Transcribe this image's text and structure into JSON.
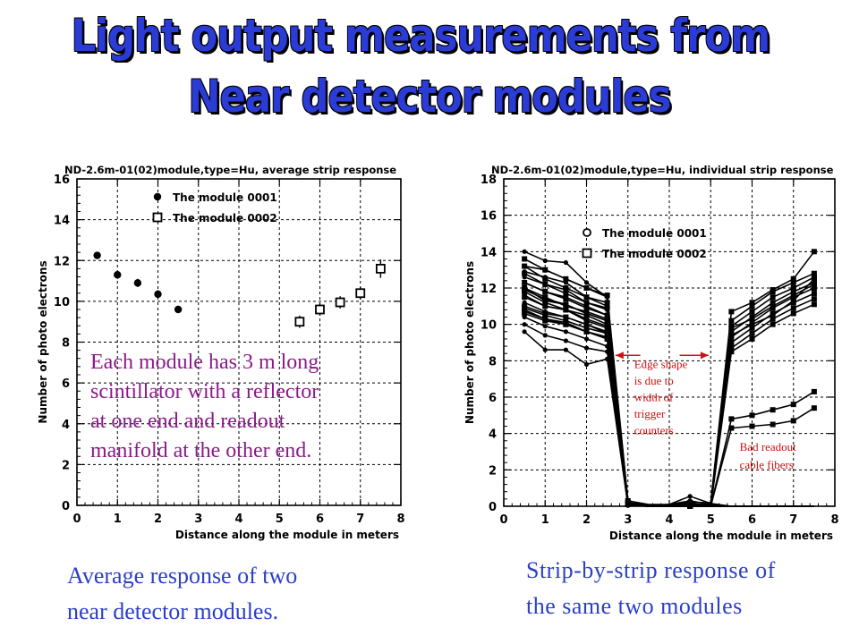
{
  "title": {
    "line1": "Light output measurements from",
    "line2": "Near detector modules"
  },
  "colors": {
    "title": "#2a3bd6",
    "caption": "#2b3fc8",
    "overlay": "#8a1a8a",
    "note": "#d01010",
    "grid": "#000000"
  },
  "captions": {
    "left_line1": "Average response of two",
    "left_line2": "near detector modules.",
    "right_line1": "Strip-by-strip response of",
    "right_line2": "the same two modules"
  },
  "left_overlay": {
    "lines": [
      "Each module has 3 m long",
      "scintillator with a reflector",
      "at one end and readout",
      "manifold at the other end."
    ]
  },
  "right_notes": {
    "edge": [
      "Edge shape",
      "is due to",
      "width of",
      "trigger",
      "counters"
    ],
    "bad": [
      "Bad readout",
      "cable fibers"
    ]
  },
  "chart_data": [
    {
      "type": "scatter",
      "title": "ND-2.6m-01(02)module,type=Hu, average strip response",
      "xlabel": "Distance along the module in meters",
      "ylabel": "Number of photo electrons",
      "xlim": [
        0,
        8
      ],
      "ylim": [
        0,
        16
      ],
      "xticks": [
        "0",
        "1",
        "2",
        "3",
        "4",
        "5",
        "6",
        "7",
        "8"
      ],
      "yticks": [
        "0",
        "2",
        "4",
        "6",
        "8",
        "10",
        "12",
        "14",
        "16"
      ],
      "grid": true,
      "legend_position": "top-left",
      "series": [
        {
          "name": "The module 0001",
          "marker": "filled-circle",
          "x": [
            0.5,
            1.0,
            1.5,
            2.0,
            2.5
          ],
          "y": [
            12.25,
            11.3,
            10.9,
            10.35,
            9.6
          ],
          "err": [
            0.15,
            0.2,
            0.2,
            0.2,
            0.15
          ]
        },
        {
          "name": "The module 0002",
          "marker": "open-square",
          "x": [
            5.5,
            6.0,
            6.5,
            7.0,
            7.5
          ],
          "y": [
            9.0,
            9.6,
            9.95,
            10.4,
            11.6
          ],
          "err": [
            0.3,
            0.3,
            0.3,
            0.3,
            0.45
          ]
        }
      ]
    },
    {
      "type": "line",
      "title": "ND-2.6m-01(02)module,type=Hu, individual strip response",
      "xlabel": "Distance along the module in meters",
      "ylabel": "Number of photo electrons",
      "xlim": [
        0,
        8
      ],
      "ylim": [
        0,
        18
      ],
      "xticks": [
        "0",
        "1",
        "2",
        "3",
        "4",
        "5",
        "6",
        "7",
        "8"
      ],
      "yticks": [
        "0",
        "2",
        "4",
        "6",
        "8",
        "10",
        "12",
        "14",
        "16",
        "18"
      ],
      "grid": true,
      "legend_position": "top-center",
      "legend": [
        {
          "name": "The module 0001",
          "marker": "open-circle"
        },
        {
          "name": "The module 0002",
          "marker": "open-square"
        }
      ],
      "x": [
        0.5,
        1.0,
        1.5,
        2.0,
        2.5,
        3.0,
        3.5,
        4.0,
        4.5,
        5.0,
        5.5,
        6.0,
        6.5,
        7.0,
        7.5
      ],
      "series": [
        {
          "marker": "circle",
          "y": [
            14.0,
            13.5,
            13.4,
            12.3,
            11.5,
            0.2,
            0.05,
            0.1,
            0.55,
            0.15,
            0,
            0,
            0,
            0,
            0
          ]
        },
        {
          "marker": "circle",
          "y": [
            13.2,
            13.0,
            12.5,
            12.0,
            11.5,
            0.15,
            0.05,
            0.1,
            0.3,
            0.1,
            0,
            0,
            0,
            0,
            0
          ]
        },
        {
          "marker": "circle",
          "y": [
            12.9,
            12.6,
            12.3,
            11.5,
            11.0,
            0.1,
            0,
            0.05,
            0.15,
            0.05,
            0,
            0,
            0,
            0,
            0
          ]
        },
        {
          "marker": "circle",
          "y": [
            12.6,
            12.2,
            11.9,
            11.2,
            10.8,
            0.1,
            0,
            0,
            0.1,
            0,
            0,
            0,
            0,
            0,
            0
          ]
        },
        {
          "marker": "circle",
          "y": [
            12.3,
            11.8,
            11.5,
            11.0,
            10.5,
            0.1,
            0,
            0,
            0.1,
            0,
            0,
            0,
            0,
            0,
            0
          ]
        },
        {
          "marker": "circle",
          "y": [
            12.0,
            11.3,
            11.1,
            10.6,
            10.2,
            0.1,
            0,
            0,
            0.05,
            0,
            0,
            0,
            0,
            0,
            0
          ]
        },
        {
          "marker": "circle",
          "y": [
            11.6,
            11.0,
            10.8,
            10.2,
            9.8,
            0.1,
            0,
            0,
            0.05,
            0,
            0,
            0,
            0,
            0,
            0
          ]
        },
        {
          "marker": "circle",
          "y": [
            11.2,
            10.7,
            10.4,
            10.0,
            9.5,
            0.05,
            0,
            0,
            0,
            0,
            0,
            0,
            0,
            0,
            0
          ]
        },
        {
          "marker": "circle",
          "y": [
            10.8,
            10.3,
            10.1,
            9.6,
            9.2,
            0.05,
            0,
            0,
            0,
            0,
            0,
            0,
            0,
            0,
            0
          ]
        },
        {
          "marker": "circle",
          "y": [
            10.4,
            9.9,
            9.6,
            9.2,
            8.8,
            0.05,
            0,
            0,
            0,
            0,
            0,
            0,
            0,
            0,
            0
          ]
        },
        {
          "marker": "circle",
          "y": [
            10.0,
            9.4,
            9.1,
            8.7,
            8.5,
            0.05,
            0,
            0,
            0,
            0,
            0,
            0,
            0,
            0,
            0
          ]
        },
        {
          "marker": "circle",
          "y": [
            9.6,
            8.6,
            8.6,
            7.8,
            8.1,
            0.05,
            0,
            0,
            0,
            0,
            0,
            0,
            0,
            0,
            0
          ]
        },
        {
          "marker": "square",
          "y": [
            13.6,
            13.0,
            12.5,
            12.0,
            11.6,
            0.3,
            0.1,
            0.1,
            0.2,
            0.2,
            10.7,
            11.2,
            11.9,
            12.5,
            14.0
          ]
        },
        {
          "marker": "square",
          "y": [
            13.2,
            12.5,
            12.0,
            11.5,
            11.2,
            0.2,
            0.05,
            0.05,
            0.1,
            0.1,
            10.2,
            11.0,
            11.8,
            12.3,
            12.8
          ]
        },
        {
          "marker": "square",
          "y": [
            12.8,
            12.2,
            11.7,
            11.2,
            10.9,
            0.2,
            0.05,
            0.05,
            0.1,
            0.1,
            9.9,
            10.7,
            11.5,
            12.0,
            12.6
          ]
        },
        {
          "marker": "square",
          "y": [
            12.3,
            11.8,
            11.4,
            10.9,
            10.5,
            0.15,
            0,
            0,
            0.05,
            0.05,
            9.6,
            10.4,
            11.2,
            11.8,
            12.3
          ]
        },
        {
          "marker": "square",
          "y": [
            11.9,
            11.4,
            11.1,
            10.6,
            10.2,
            0.15,
            0,
            0,
            0.05,
            0.05,
            9.3,
            10.1,
            10.9,
            11.5,
            12.0
          ]
        },
        {
          "marker": "square",
          "y": [
            11.5,
            11.0,
            10.8,
            10.3,
            9.9,
            0.1,
            0,
            0,
            0,
            0,
            9.0,
            9.8,
            10.6,
            11.2,
            11.7
          ]
        },
        {
          "marker": "square",
          "y": [
            11.0,
            10.6,
            10.4,
            10.0,
            9.6,
            0.1,
            0,
            0,
            0,
            0,
            8.7,
            9.5,
            10.3,
            10.9,
            11.4
          ]
        },
        {
          "marker": "square",
          "y": [
            10.6,
            10.2,
            10.0,
            9.6,
            9.3,
            0.1,
            0,
            0,
            0,
            0,
            8.5,
            9.2,
            10.0,
            10.6,
            11.1
          ]
        },
        {
          "marker": "square",
          "y": [
            11.8,
            11.2,
            10.8,
            10.5,
            10.0,
            0.1,
            0,
            0,
            0,
            0.05,
            9.4,
            10.0,
            10.5,
            11.3,
            12.5
          ]
        },
        {
          "marker": "square",
          "y": [
            12.0,
            11.5,
            11.0,
            10.7,
            10.3,
            0.1,
            0,
            0,
            0,
            0.05,
            9.8,
            10.3,
            11.0,
            11.6,
            12.2
          ]
        },
        {
          "marker": "square",
          "y": [
            10.9,
            10.5,
            10.2,
            9.8,
            9.5,
            0.1,
            0,
            0,
            0,
            0,
            4.8,
            5.0,
            5.3,
            5.6,
            6.3
          ]
        },
        {
          "marker": "square",
          "y": [
            10.7,
            10.3,
            10.0,
            9.6,
            9.2,
            0.1,
            0,
            0,
            0,
            0,
            4.3,
            4.4,
            4.5,
            4.7,
            5.4
          ]
        }
      ]
    }
  ]
}
